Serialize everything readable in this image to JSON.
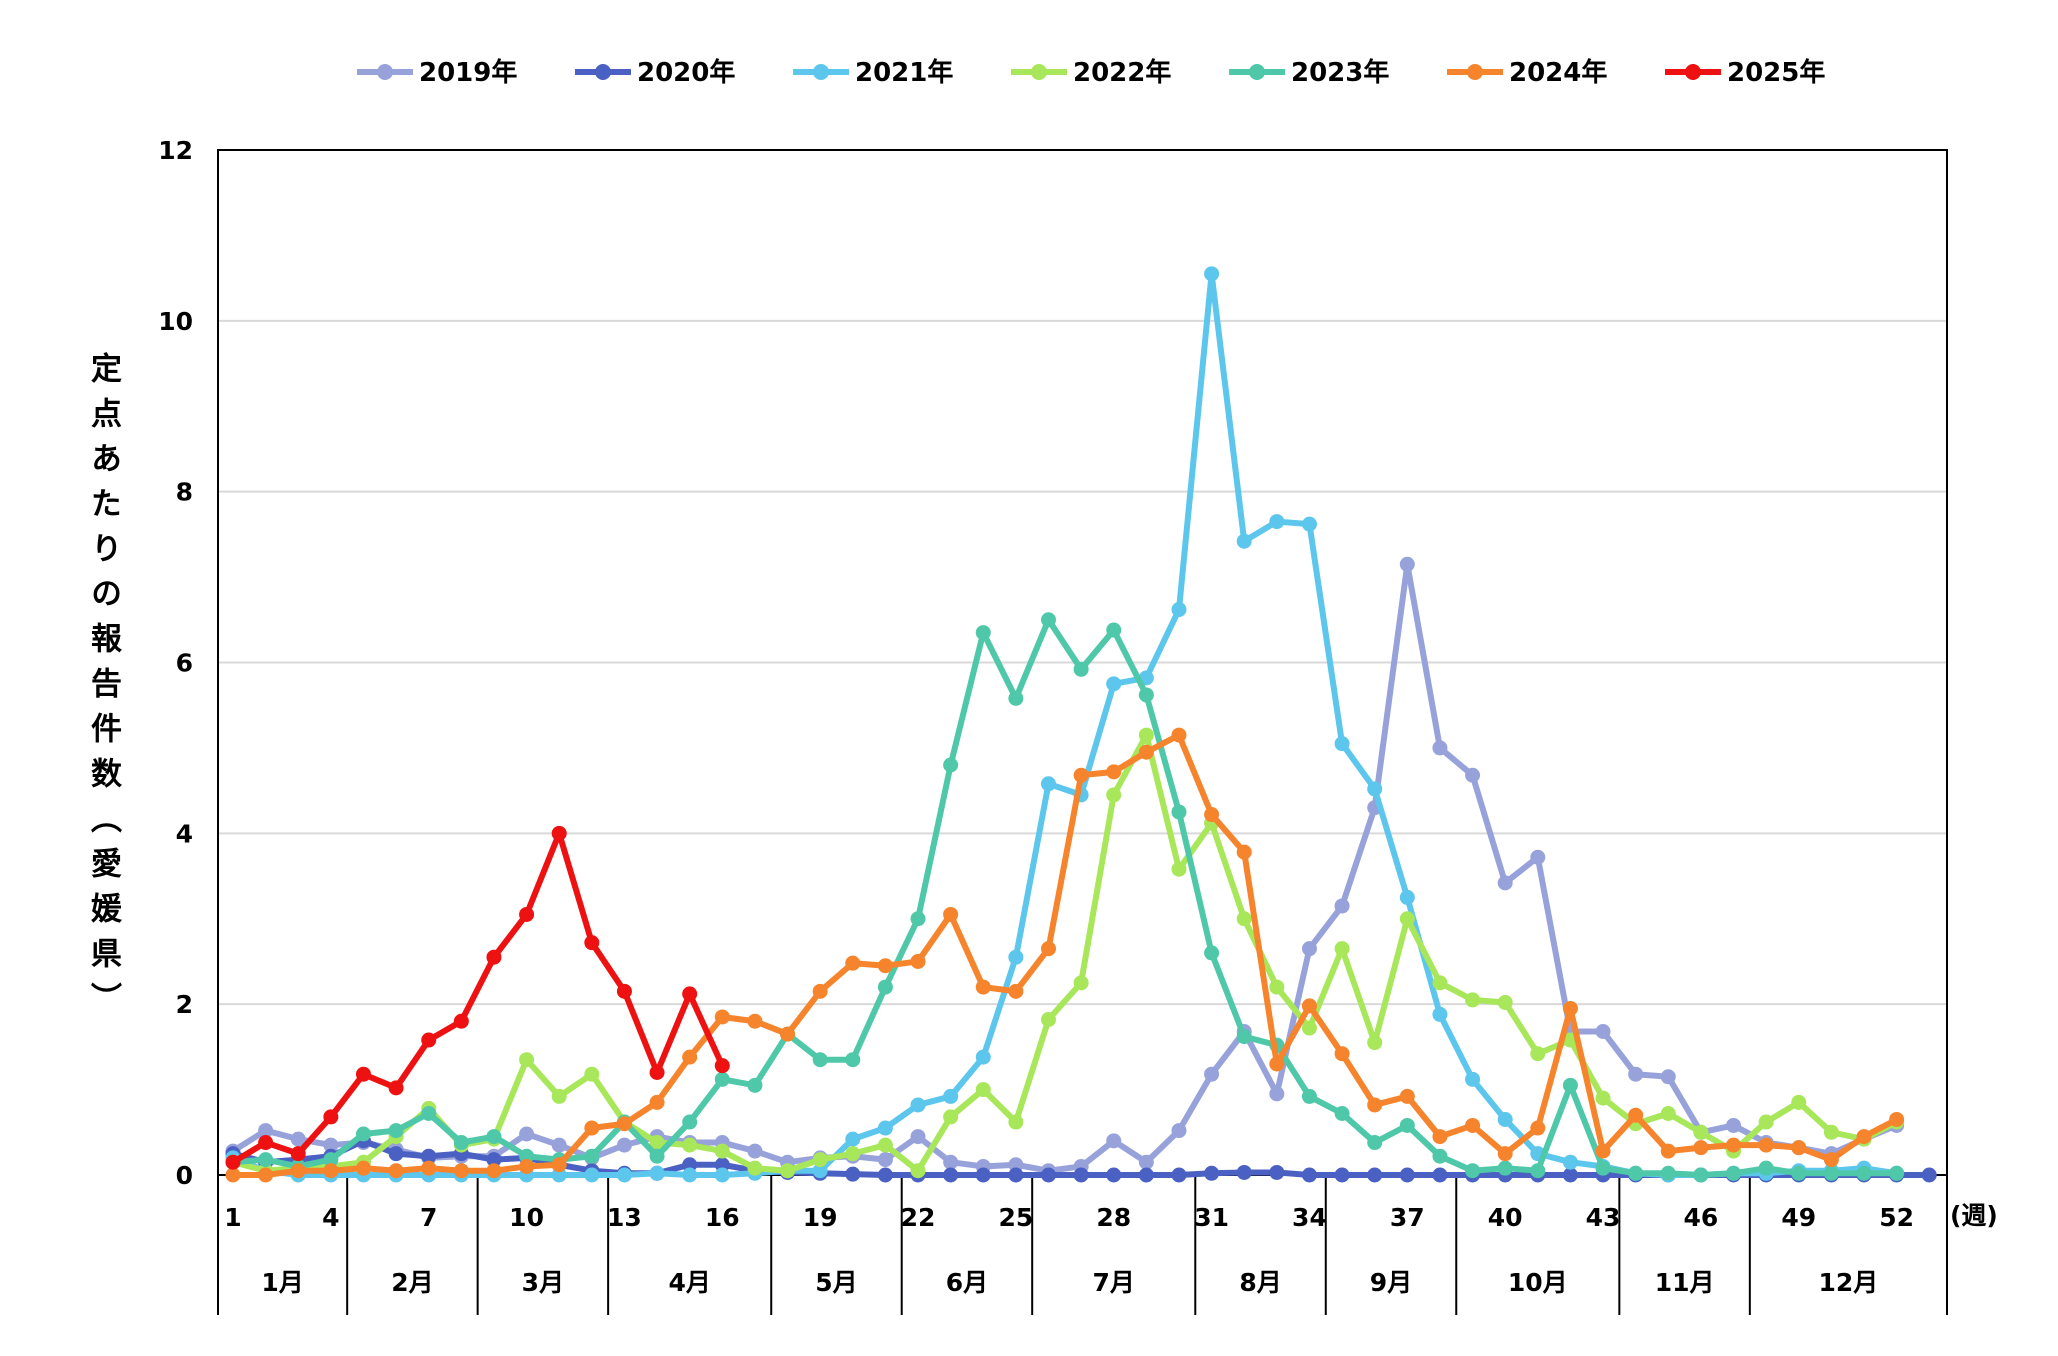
{
  "chart_data": {
    "type": "line",
    "ylabel": "定点あたりの報告件数（愛媛県）",
    "x_unit": "(週)",
    "ylim": [
      0,
      12
    ],
    "yticks": [
      0,
      2,
      4,
      6,
      8,
      10,
      12
    ],
    "xlim": [
      1,
      53
    ],
    "xticks": [
      1,
      4,
      7,
      10,
      13,
      16,
      19,
      22,
      25,
      28,
      31,
      34,
      37,
      40,
      43,
      46,
      49,
      52
    ],
    "months": [
      {
        "label": "1月",
        "from": 1,
        "to": 5
      },
      {
        "label": "2月",
        "from": 5,
        "to": 9
      },
      {
        "label": "3月",
        "from": 9,
        "to": 13
      },
      {
        "label": "4月",
        "from": 13,
        "to": 18
      },
      {
        "label": "5月",
        "from": 18,
        "to": 22
      },
      {
        "label": "6月",
        "from": 22,
        "to": 26
      },
      {
        "label": "7月",
        "from": 26,
        "to": 31
      },
      {
        "label": "8月",
        "from": 31,
        "to": 35
      },
      {
        "label": "9月",
        "from": 35,
        "to": 39
      },
      {
        "label": "10月",
        "from": 39,
        "to": 44
      },
      {
        "label": "11月",
        "from": 44,
        "to": 48
      },
      {
        "label": "12月",
        "from": 48,
        "to": 53
      }
    ],
    "grid": "horizontal",
    "legend_position": "top",
    "series": [
      {
        "name": "2019年",
        "color": "#98A2DA",
        "start": 1,
        "values": [
          0.28,
          0.52,
          0.42,
          0.35,
          0.38,
          0.3,
          0.2,
          0.22,
          0.22,
          0.48,
          0.35,
          0.2,
          0.35,
          0.45,
          0.38,
          0.38,
          0.28,
          0.15,
          0.2,
          0.22,
          0.18,
          0.45,
          0.15,
          0.1,
          0.12,
          0.05,
          0.1,
          0.4,
          0.15,
          0.52,
          1.18,
          1.68,
          0.95,
          2.65,
          3.15,
          4.3,
          7.15,
          5.0,
          4.68,
          3.42,
          3.72,
          1.68,
          1.68,
          1.18,
          1.15,
          0.5,
          0.58,
          0.38,
          0.32,
          0.25,
          0.42,
          0.58
        ]
      },
      {
        "name": "2020年",
        "color": "#4A60C2",
        "start": 1,
        "values": [
          0.25,
          0.15,
          0.18,
          0.22,
          0.4,
          0.25,
          0.22,
          0.25,
          0.18,
          0.2,
          0.12,
          0.05,
          0.02,
          0.02,
          0.12,
          0.12,
          0.05,
          0.03,
          0.02,
          0.01,
          0.0,
          0.0,
          0.0,
          0.0,
          0.0,
          0.0,
          0.0,
          0.0,
          0.0,
          0.0,
          0.02,
          0.03,
          0.03,
          0.0,
          0.0,
          0.0,
          0.0,
          0.0,
          0.0,
          0.0,
          0.0,
          0.0,
          0.0,
          0.0,
          0.0,
          0.0,
          0.0,
          0.0,
          0.0,
          0.0,
          0.0,
          0.0,
          0.0
        ]
      },
      {
        "name": "2021年",
        "color": "#5CC6EC",
        "start": 1,
        "values": [
          0.2,
          0.05,
          0.0,
          0.0,
          0.0,
          0.0,
          0.0,
          0.0,
          0.0,
          0.0,
          0.0,
          0.0,
          0.0,
          0.02,
          0.0,
          0.0,
          0.02,
          0.05,
          0.05,
          0.42,
          0.55,
          0.82,
          0.92,
          1.38,
          2.55,
          4.58,
          4.45,
          5.75,
          5.82,
          6.62,
          10.55,
          7.42,
          7.65,
          7.62,
          5.05,
          4.52,
          3.25,
          1.88,
          1.12,
          0.65,
          0.25,
          0.15,
          0.1,
          0.02,
          0.0,
          0.0,
          0.02,
          0.02,
          0.05,
          0.05,
          0.08,
          0.02
        ]
      },
      {
        "name": "2022年",
        "color": "#A8E65A",
        "start": 1,
        "values": [
          0.15,
          0.05,
          0.08,
          0.1,
          0.15,
          0.45,
          0.78,
          0.35,
          0.42,
          1.35,
          0.92,
          1.18,
          0.62,
          0.38,
          0.35,
          0.28,
          0.08,
          0.05,
          0.18,
          0.25,
          0.35,
          0.05,
          0.68,
          1.0,
          0.62,
          1.82,
          2.25,
          4.45,
          5.15,
          3.58,
          4.12,
          3.0,
          2.2,
          1.72,
          2.65,
          1.55,
          3.0,
          2.25,
          2.05,
          2.02,
          1.42,
          1.58,
          0.9,
          0.6,
          0.72,
          0.5,
          0.28,
          0.62,
          0.85,
          0.5,
          0.42,
          0.62
        ]
      },
      {
        "name": "2023年",
        "color": "#4EC8A8",
        "start": 1,
        "values": [
          0.15,
          0.18,
          0.1,
          0.18,
          0.48,
          0.52,
          0.72,
          0.38,
          0.45,
          0.22,
          0.18,
          0.22,
          0.62,
          0.22,
          0.62,
          1.12,
          1.05,
          1.65,
          1.35,
          1.35,
          2.2,
          3.0,
          4.8,
          6.35,
          5.58,
          6.5,
          5.92,
          6.38,
          5.62,
          4.25,
          2.6,
          1.62,
          1.52,
          0.92,
          0.72,
          0.38,
          0.58,
          0.22,
          0.05,
          0.08,
          0.05,
          1.05,
          0.08,
          0.02,
          0.02,
          0.0,
          0.02,
          0.08,
          0.02,
          0.02,
          0.02,
          0.02
        ]
      },
      {
        "name": "2024年",
        "color": "#F5842C",
        "start": 1,
        "values": [
          0.0,
          0.0,
          0.05,
          0.05,
          0.08,
          0.05,
          0.08,
          0.05,
          0.05,
          0.1,
          0.12,
          0.55,
          0.6,
          0.85,
          1.38,
          1.85,
          1.8,
          1.65,
          2.15,
          2.48,
          2.45,
          2.5,
          3.05,
          2.2,
          2.15,
          2.65,
          4.68,
          4.72,
          4.95,
          5.15,
          4.22,
          3.78,
          1.3,
          1.98,
          1.42,
          0.82,
          0.92,
          0.45,
          0.58,
          0.25,
          0.55,
          1.95,
          0.28,
          0.7,
          0.28,
          0.32,
          0.35,
          0.35,
          0.32,
          0.18,
          0.45,
          0.65
        ]
      },
      {
        "name": "2025年",
        "color": "#EE1111",
        "start": 1,
        "values": [
          0.15,
          0.38,
          0.25,
          0.68,
          1.18,
          1.02,
          1.58,
          1.8,
          2.55,
          3.05,
          4.0,
          2.72,
          2.15,
          1.2,
          2.12,
          1.28
        ]
      }
    ]
  }
}
